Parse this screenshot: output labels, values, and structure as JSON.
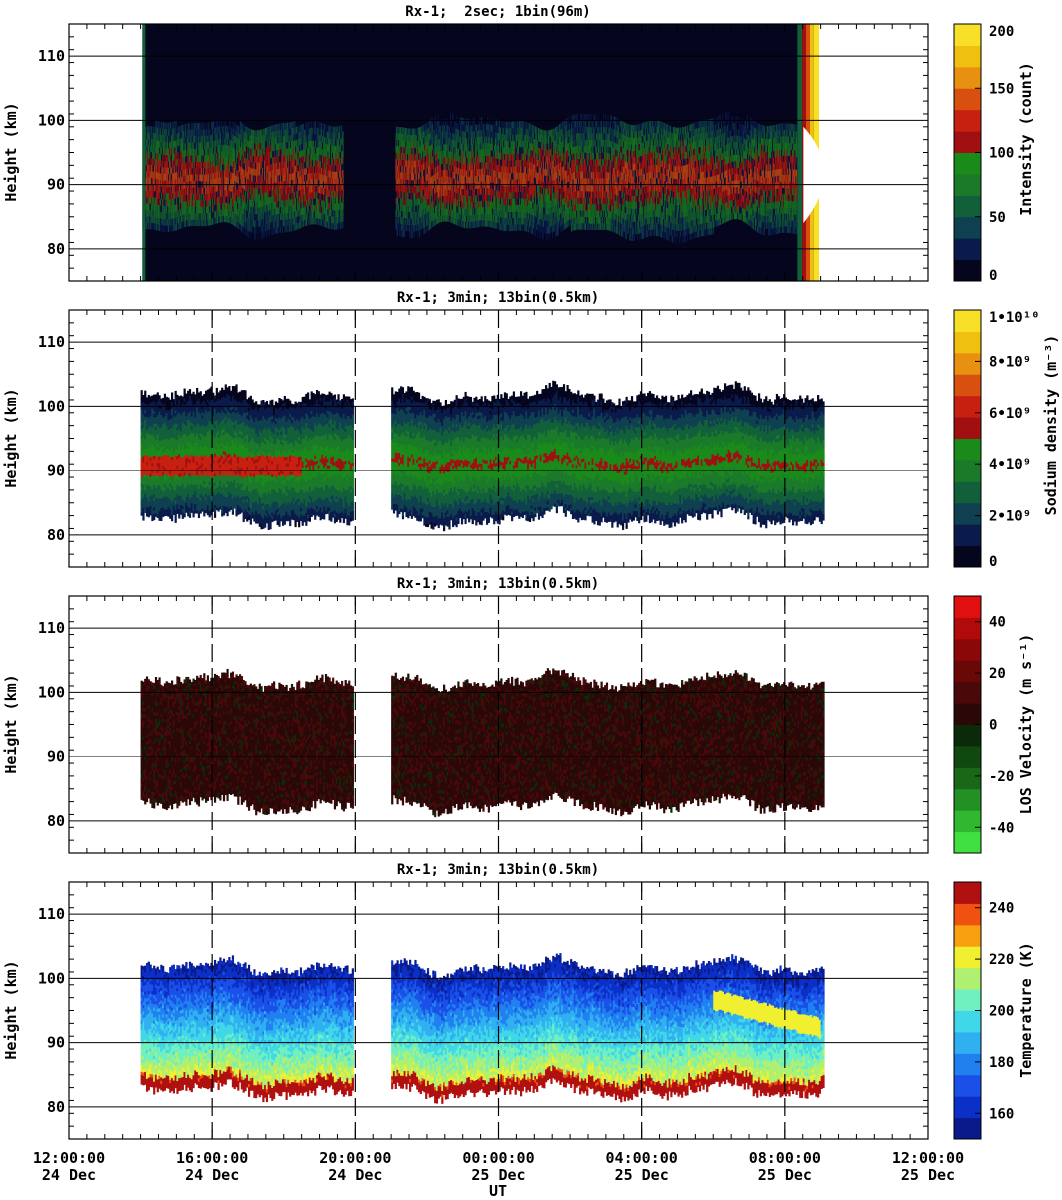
{
  "chart_data": {
    "type": "heatmap",
    "x_label": "UT",
    "x_range_hours": [
      12,
      36
    ],
    "x_ticks": [
      {
        "hour": 12,
        "time": "12:00:00",
        "date": "24 Dec"
      },
      {
        "hour": 16,
        "time": "16:00:00",
        "date": "24 Dec"
      },
      {
        "hour": 20,
        "time": "20:00:00",
        "date": "24 Dec"
      },
      {
        "hour": 24,
        "time": "00:00:00",
        "date": "25 Dec"
      },
      {
        "hour": 28,
        "time": "04:00:00",
        "date": "25 Dec"
      },
      {
        "hour": 32,
        "time": "08:00:00",
        "date": "25 Dec"
      },
      {
        "hour": 36,
        "time": "12:00:00",
        "date": "25 Dec"
      }
    ],
    "y_label": "Height (km)",
    "y_range_km": [
      75,
      115
    ],
    "y_ticks": [
      80,
      90,
      100,
      110
    ],
    "panels": [
      {
        "id": "intensity",
        "title": "Rx-1;  2sec; 1bin(96m)",
        "colorbar_label": "Intensity (count)",
        "colorbar_ticks": [
          "0",
          "50",
          "100",
          "150",
          "200"
        ],
        "colorbar_range": [
          0,
          200
        ],
        "colors": [
          "#05051e",
          "#0a1a4a",
          "#0e4050",
          "#12603a",
          "#1a7a2a",
          "#1a8a1a",
          "#a01010",
          "#c82010",
          "#d85010",
          "#e89010",
          "#f0c010",
          "#f8e028"
        ],
        "data_start_hour": 14.05,
        "data_end_hour": 33.45,
        "gaps_hours": [
          [
            19.65,
            21.1
          ]
        ],
        "saturated_after_hour": 32.35,
        "layer_center_km": 90.5,
        "layer_top_km": 99,
        "layer_bottom_km": 83
      },
      {
        "id": "density",
        "title": "Rx-1; 3min; 13bin(0.5km)",
        "colorbar_label": "Sodium density (m⁻³)",
        "colorbar_ticks": [
          "0",
          "2•10⁹",
          "4•10⁹",
          "6•10⁹",
          "8•10⁹",
          "1•10¹⁰"
        ],
        "colorbar_range": [
          0,
          10000000000.0
        ],
        "colors": [
          "#05051e",
          "#0a1a4a",
          "#0e4050",
          "#12603a",
          "#1a7a2a",
          "#1a8a1a",
          "#a01010",
          "#c82010",
          "#d85010",
          "#e89010",
          "#f0c010",
          "#f8e028"
        ],
        "data_segments_hours": [
          [
            14.0,
            19.95
          ],
          [
            21.0,
            33.1
          ]
        ],
        "layer_center_km": 92,
        "layer_top_km": 101.5,
        "layer_bottom_km": 82.5
      },
      {
        "id": "velocity",
        "title": "Rx-1; 3min; 13bin(0.5km)",
        "colorbar_label": "LOS Velocity (m s⁻¹)",
        "colorbar_ticks": [
          "-40",
          "-20",
          "0",
          "20",
          "40"
        ],
        "colorbar_range": [
          -50,
          50
        ],
        "colors": [
          "#40e040",
          "#30b830",
          "#229022",
          "#186818",
          "#104810",
          "#0a2a0a",
          "#2a0808",
          "#4a0808",
          "#6a0808",
          "#8a0808",
          "#b00a0a",
          "#e01010"
        ],
        "data_segments_hours": [
          [
            14.0,
            19.95
          ],
          [
            21.0,
            33.1
          ]
        ],
        "layer_center_km": 92,
        "layer_top_km": 101.5,
        "layer_bottom_km": 82.5
      },
      {
        "id": "temperature",
        "title": "Rx-1; 3min; 13bin(0.5km)",
        "colorbar_label": "Temperature (K)",
        "colorbar_ticks": [
          "160",
          "180",
          "200",
          "220",
          "240"
        ],
        "colorbar_range": [
          150,
          250
        ],
        "colors": [
          "#0a1a8a",
          "#0a30c8",
          "#1a50e8",
          "#2080f0",
          "#30b0f0",
          "#40d8e8",
          "#70f0c0",
          "#b0f070",
          "#f0f030",
          "#f8a010",
          "#f05010",
          "#b01010"
        ],
        "data_segments_hours": [
          [
            14.0,
            19.95
          ],
          [
            21.0,
            33.1
          ]
        ],
        "layer_center_km": 92,
        "layer_top_km": 101.5,
        "layer_bottom_km": 82.5
      }
    ]
  }
}
